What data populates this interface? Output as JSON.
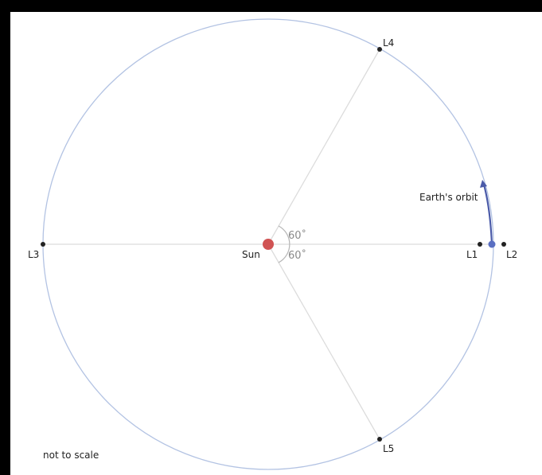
{
  "diagram": {
    "points": {
      "sun": "Sun",
      "l1": "L1",
      "l2": "L2",
      "l3": "L3",
      "l4": "L4",
      "l5": "L5"
    },
    "orbit_label": "Earth's orbit",
    "angle_upper": "60˚",
    "angle_lower": "60˚",
    "note": "not to scale"
  },
  "colors": {
    "orbit": "#b3c3e3",
    "spoke": "#dcdcdc",
    "sun": "#d05353",
    "earth": "#5a6fc2",
    "arrow": "#4a5aa8",
    "point": "#222222",
    "frame": "#000000"
  }
}
